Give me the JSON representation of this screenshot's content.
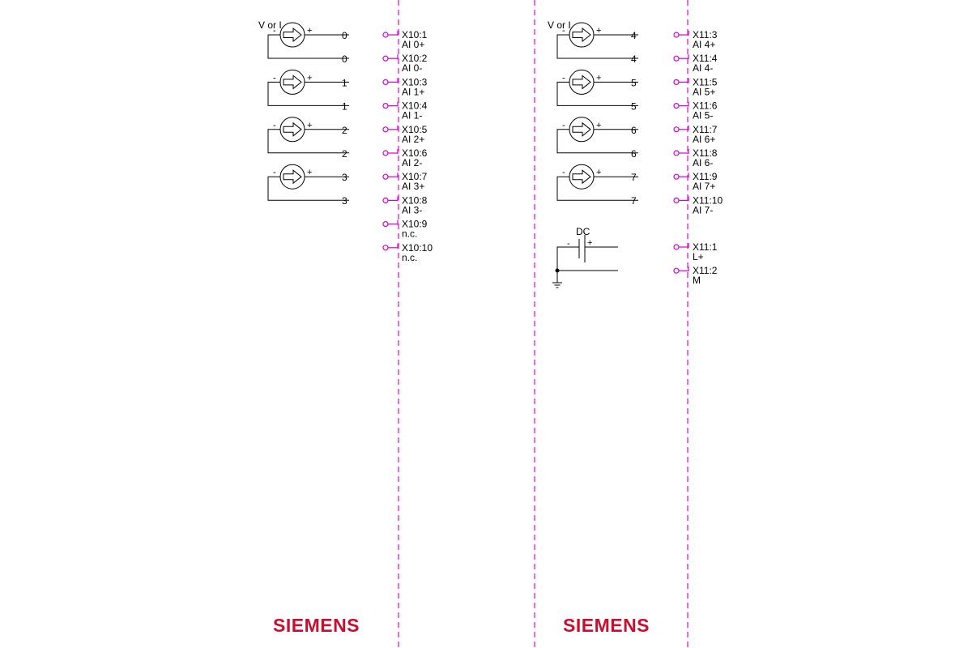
{
  "diagram": {
    "left": {
      "source_label": "V or I",
      "channels": [
        "0",
        "1",
        "2",
        "3"
      ],
      "terminals": [
        {
          "id": "X10:1",
          "name": "AI 0+"
        },
        {
          "id": "X10:2",
          "name": "AI 0-"
        },
        {
          "id": "X10:3",
          "name": "AI 1+"
        },
        {
          "id": "X10:4",
          "name": "AI 1-"
        },
        {
          "id": "X10:5",
          "name": "AI 2+"
        },
        {
          "id": "X10:6",
          "name": "AI 2-"
        },
        {
          "id": "X10:7",
          "name": "AI 3+"
        },
        {
          "id": "X10:8",
          "name": "AI 3-"
        },
        {
          "id": "X10:9",
          "name": "n.c."
        },
        {
          "id": "X10:10",
          "name": "n.c."
        }
      ],
      "brand": "SIEMENS"
    },
    "right": {
      "source_label": "V or I",
      "channels": [
        "4",
        "5",
        "6",
        "7"
      ],
      "terminals": [
        {
          "id": "X11:3",
          "name": "AI 4+"
        },
        {
          "id": "X11:4",
          "name": "AI 4-"
        },
        {
          "id": "X11:5",
          "name": "AI 5+"
        },
        {
          "id": "X11:6",
          "name": "AI 5-"
        },
        {
          "id": "X11:7",
          "name": "AI 6+"
        },
        {
          "id": "X11:8",
          "name": "AI 6-"
        },
        {
          "id": "X11:9",
          "name": "AI 7+"
        },
        {
          "id": "X11:10",
          "name": "AI 7-"
        }
      ],
      "supply": {
        "label": "DC",
        "minus": "-",
        "plus": "+",
        "terminals": [
          {
            "id": "X11:1",
            "name": "L+"
          },
          {
            "id": "X11:2",
            "name": "M"
          }
        ]
      },
      "brand": "SIEMENS"
    },
    "source_minus": "-",
    "source_plus": "+"
  }
}
